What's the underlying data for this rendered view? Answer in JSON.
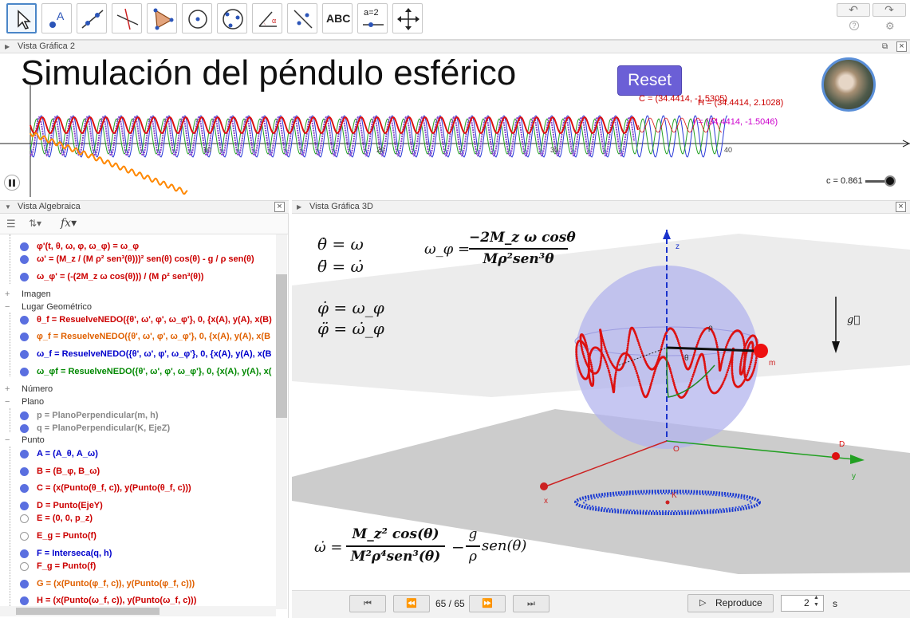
{
  "toolbar": {
    "tools": [
      "move-tool",
      "point-tool",
      "line-tool",
      "perpendicular-line-tool",
      "polygon-tool",
      "circle-tool",
      "conic-tool",
      "angle-tool",
      "reflect-tool",
      "text-tool",
      "slider-tool",
      "move-view-tool"
    ],
    "text_tool_label": "ABC",
    "slider_tool_label": "a=2",
    "undo_label": "↶",
    "redo_label": "↷",
    "help_label": "?",
    "settings_label": "⚙"
  },
  "graphics2": {
    "header_title": "Vista Gráfica 2",
    "title": "Simulación del péndulo esférico",
    "reset_label": "Reset",
    "point_c": "C = (34.4414, -1.5305)",
    "point_h": "H = (34.4414, 2.1028)",
    "point_i": "I = (34.4414, -1.5046)",
    "axis_ticks": [
      "10",
      "20",
      "30",
      "40"
    ],
    "slider_label": "c = 0.861"
  },
  "algebra": {
    "header_title": "Vista Algebraica",
    "rows": [
      {
        "text": "φ'(t, θ, ω, φ, ω_φ) = ω_φ",
        "color": "#cc0000",
        "filled": true
      },
      {
        "text": "ω' = (M_z / (M ρ² sen³(θ)))² sen(θ) cos(θ) - g / ρ sen(θ)",
        "color": "#cc0000",
        "filled": true
      },
      {
        "text": "ω_φ' = (-(2M_z ω cos(θ))) / (M ρ² sen³(θ))",
        "color": "#cc0000",
        "filled": true
      },
      {
        "text": "θ_f = ResuelveNEDO({θ', ω', φ', ω_φ'}, 0, {x(A), y(A), x(B)",
        "color": "#cc0000",
        "filled": true
      },
      {
        "text": "φ_f = ResuelveNEDO({θ', ω', φ', ω_φ'}, 0, {x(A), y(A), x(B",
        "color": "#e06000",
        "filled": true
      },
      {
        "text": "ω_f = ResuelveNEDO({θ', ω', φ', ω_φ'}, 0, {x(A), y(A), x(B",
        "color": "#0000cc",
        "filled": true
      },
      {
        "text": "ω_φf = ResuelveNEDO({θ', ω', φ', ω_φ'}, 0, {x(A), y(A), x(",
        "color": "#008800",
        "filled": true
      },
      {
        "text": "p = PlanoPerpendicular(m, h)",
        "color": "#888888",
        "filled": true
      },
      {
        "text": "q = PlanoPerpendicular(K, EjeZ)",
        "color": "#888888",
        "filled": true
      },
      {
        "text": "A = (A_θ, A_ω)",
        "color": "#0000cc",
        "filled": true
      },
      {
        "text": "B = (B_φ, B_ω)",
        "color": "#cc0000",
        "filled": true
      },
      {
        "text": "C = (x(Punto(θ_f, c)), y(Punto(θ_f, c)))",
        "color": "#cc0000",
        "filled": true
      },
      {
        "text": "D = Punto(EjeY)",
        "color": "#cc0000",
        "filled": true
      },
      {
        "text": "E = (0, 0, p_z)",
        "color": "#cc0000",
        "filled": false
      },
      {
        "text": "E_g = Punto(f)",
        "color": "#cc0000",
        "filled": false
      },
      {
        "text": "F = Interseca(q, h)",
        "color": "#0000cc",
        "filled": true
      },
      {
        "text": "F_g = Punto(f)",
        "color": "#cc0000",
        "filled": false
      },
      {
        "text": "G = (x(Punto(φ_f, c)), y(Punto(φ_f, c)))",
        "color": "#e06000",
        "filled": true
      },
      {
        "text": "H = (x(Punto(ω_f, c)), y(Punto(ω_f, c)))",
        "color": "#cc0000",
        "filled": true
      }
    ],
    "categories": [
      "Imagen",
      "Lugar Geométrico",
      "Número",
      "Plano",
      "Punto"
    ]
  },
  "graphics3d": {
    "header_title": "Vista Gráfica 3D",
    "eq1": "θ̇ = ω",
    "eq2": "θ̈ = ω̇",
    "eq3": "φ̇ = ω_φ",
    "eq4": "φ̈ = ω̇_φ",
    "eq_omega_phi_lhs": "ω_φ =",
    "eq_omega_phi_num": "−2M_z ω cosθ",
    "eq_omega_phi_den": "Mρ²sen³θ",
    "eq_big_lhs": "ω̇ =",
    "eq_big_num": "M_z² cos(θ)",
    "eq_big_den": "M²ρ⁴sen³(θ)",
    "eq_big_mid": "−",
    "eq_big_g": "g",
    "eq_big_rho": "ρ",
    "eq_big_tail": "sen(θ)",
    "labels": {
      "z": "z",
      "x": "x",
      "y": "y",
      "O": "O",
      "D": "D",
      "K": "K",
      "m": "m",
      "g": "g⃗",
      "rho": "ρ",
      "theta": "θ"
    }
  },
  "playback": {
    "first": "⏮",
    "prev": "⏪",
    "counter": "65 / 65",
    "next": "⏩",
    "last": "⏭",
    "play_label": "Reproduce",
    "seconds_value": "2",
    "seconds_unit": "s"
  }
}
